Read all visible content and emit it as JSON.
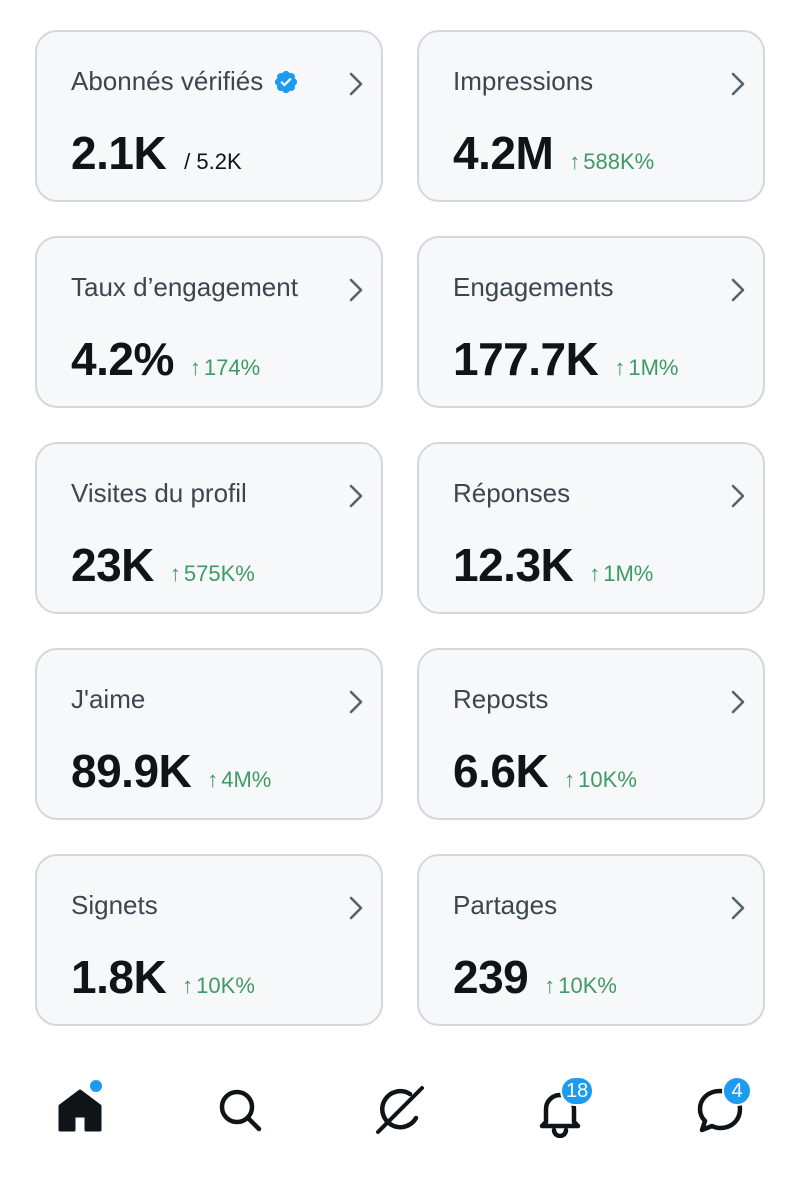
{
  "colors": {
    "accent": "#1d9bf0",
    "positive": "#3f9a65",
    "card_bg": "#f7f8f9",
    "card_border": "#d3d8dd"
  },
  "metrics": [
    {
      "title": "Abonnés vérifiés",
      "value": "2.1K",
      "sub": "/ 5.2K",
      "delta": "",
      "verified": true
    },
    {
      "title": "Impressions",
      "value": "4.2M",
      "sub": "",
      "delta": "588K%"
    },
    {
      "title": "Taux d’engagement",
      "value": "4.2%",
      "sub": "",
      "delta": "174%"
    },
    {
      "title": "Engagements",
      "value": "177.7K",
      "sub": "",
      "delta": "1M%"
    },
    {
      "title": "Visites du profil",
      "value": "23K",
      "sub": "",
      "delta": "575K%"
    },
    {
      "title": "Réponses",
      "value": "12.3K",
      "sub": "",
      "delta": "1M%"
    },
    {
      "title": "J'aime",
      "value": "89.9K",
      "sub": "",
      "delta": "4M%"
    },
    {
      "title": "Reposts",
      "value": "6.6K",
      "sub": "",
      "delta": "10K%"
    },
    {
      "title": "Signets",
      "value": "1.8K",
      "sub": "",
      "delta": "10K%"
    },
    {
      "title": "Partages",
      "value": "239",
      "sub": "",
      "delta": "10K%"
    }
  ],
  "delta_arrow": "↑",
  "nav": {
    "home": {
      "icon": "home-icon"
    },
    "search": {
      "icon": "search-icon"
    },
    "grok": {
      "icon": "grok-icon"
    },
    "notifications": {
      "icon": "bell-icon",
      "badge": "18"
    },
    "messages": {
      "icon": "message-icon",
      "badge": "4"
    }
  }
}
